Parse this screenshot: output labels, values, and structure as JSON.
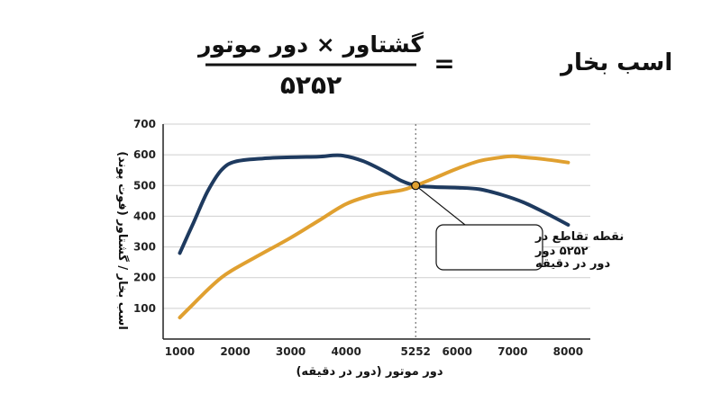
{
  "formula": {
    "lhs": "اسب بخار",
    "equals": "=",
    "numerator": "گشتاور × دور موتور",
    "denominator": "۵۲۵۲"
  },
  "colors": {
    "torque_line": "#1e3a5f",
    "power_line": "#e0a030",
    "grid": "#cfcfcf",
    "axis": "#222222",
    "marker_fill": "#e0a030",
    "marker_stroke": "#111111"
  },
  "callout": {
    "line1": "نقطه تقاطع در",
    "line2": "۵۲۵۲ دور در دقیقه",
    "line3": "دور در دقیقه"
  },
  "chart_data": {
    "type": "line",
    "xlabel": "دور موتور (دور در دقیقه)",
    "ylabel": "اسب بخار / گشتاور (فوت پوند)",
    "xlim": [
      700,
      8400
    ],
    "ylim": [
      0,
      700
    ],
    "x_ticks": [
      1000,
      2000,
      3000,
      4000,
      5252,
      6000,
      7000,
      8000
    ],
    "x_tick_labels": [
      "1000",
      "2000",
      "3000",
      "4000",
      "5252",
      "6000",
      "7000",
      "8000"
    ],
    "y_ticks": [
      100,
      200,
      300,
      400,
      500,
      600,
      700
    ],
    "y_tick_labels": [
      "100",
      "200",
      "300",
      "400",
      "500",
      "600",
      "700"
    ],
    "grid": true,
    "crossover": {
      "x": 5252,
      "y": 500
    },
    "series": [
      {
        "key": "torque",
        "x": [
          1000,
          1250,
          1500,
          1750,
          2000,
          2500,
          3000,
          3500,
          3900,
          4300,
          4700,
          5000,
          5252,
          5600,
          6000,
          6400,
          6800,
          7200,
          7600,
          8000
        ],
        "y": [
          280,
          380,
          480,
          550,
          578,
          588,
          592,
          594,
          598,
          580,
          545,
          515,
          500,
          495,
          493,
          488,
          470,
          445,
          410,
          372
        ]
      },
      {
        "key": "power",
        "x": [
          1000,
          1250,
          1500,
          1750,
          2000,
          2500,
          3000,
          3500,
          4000,
          4500,
          5000,
          5252,
          5600,
          6000,
          6400,
          6800,
          7000,
          7200,
          7600,
          8000
        ],
        "y": [
          70,
          115,
          160,
          200,
          230,
          280,
          330,
          385,
          440,
          470,
          485,
          500,
          525,
          555,
          580,
          592,
          595,
          592,
          585,
          575
        ]
      }
    ]
  }
}
